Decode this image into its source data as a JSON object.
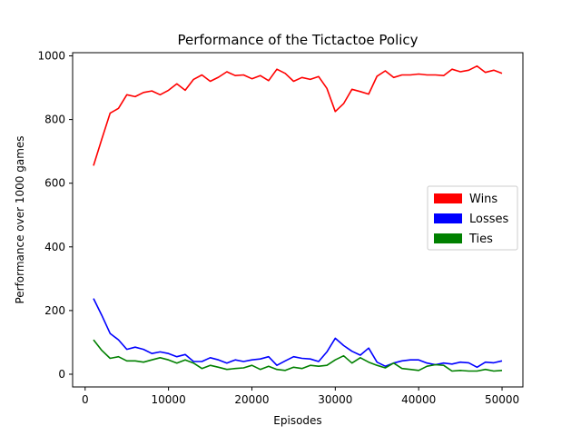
{
  "chart_data": {
    "type": "line",
    "title": "Performance of the Tictactoe Policy",
    "xlabel": "Episodes",
    "ylabel": "Performance over 1000 games",
    "xlim": [
      -1500,
      52500
    ],
    "ylim": [
      -40,
      1010
    ],
    "xticks": [
      0,
      10000,
      20000,
      30000,
      40000,
      50000
    ],
    "xtick_labels": [
      "0",
      "10000",
      "20000",
      "30000",
      "40000",
      "50000"
    ],
    "yticks": [
      0,
      200,
      400,
      600,
      800,
      1000
    ],
    "ytick_labels": [
      "0",
      "200",
      "400",
      "600",
      "800",
      "1000"
    ],
    "legend_position": "center-right",
    "x": [
      1000,
      2000,
      3000,
      4000,
      5000,
      6000,
      7000,
      8000,
      9000,
      10000,
      11000,
      12000,
      13000,
      14000,
      15000,
      16000,
      17000,
      18000,
      19000,
      20000,
      21000,
      22000,
      23000,
      24000,
      25000,
      26000,
      27000,
      28000,
      29000,
      30000,
      31000,
      32000,
      33000,
      34000,
      35000,
      36000,
      37000,
      38000,
      39000,
      40000,
      41000,
      42000,
      43000,
      44000,
      45000,
      46000,
      47000,
      48000,
      49000,
      50000
    ],
    "series": [
      {
        "name": "Wins",
        "color": "#ff0000",
        "values": [
          655,
          738,
          820,
          835,
          878,
          872,
          885,
          890,
          878,
          892,
          912,
          892,
          926,
          940,
          920,
          933,
          950,
          938,
          940,
          928,
          938,
          922,
          958,
          945,
          920,
          932,
          926,
          935,
          898,
          825,
          850,
          895,
          888,
          880,
          936,
          953,
          932,
          940,
          940,
          943,
          940,
          940,
          938,
          958,
          950,
          955,
          968,
          948,
          955,
          945
        ]
      },
      {
        "name": "Losses",
        "color": "#0000ff",
        "values": [
          238,
          185,
          128,
          108,
          78,
          85,
          78,
          65,
          70,
          65,
          55,
          62,
          40,
          40,
          52,
          45,
          35,
          45,
          40,
          45,
          48,
          55,
          28,
          42,
          55,
          50,
          48,
          40,
          70,
          113,
          90,
          72,
          60,
          82,
          38,
          25,
          35,
          42,
          45,
          45,
          35,
          30,
          35,
          32,
          38,
          36,
          22,
          38,
          36,
          42
        ]
      },
      {
        "name": "Ties",
        "color": "#008000",
        "values": [
          108,
          75,
          50,
          55,
          42,
          42,
          38,
          45,
          52,
          45,
          35,
          45,
          35,
          18,
          28,
          22,
          15,
          18,
          20,
          28,
          15,
          25,
          15,
          12,
          22,
          18,
          28,
          25,
          28,
          45,
          58,
          35,
          52,
          38,
          28,
          20,
          35,
          18,
          15,
          12,
          25,
          30,
          28,
          10,
          12,
          10,
          10,
          15,
          10,
          12
        ]
      }
    ]
  }
}
